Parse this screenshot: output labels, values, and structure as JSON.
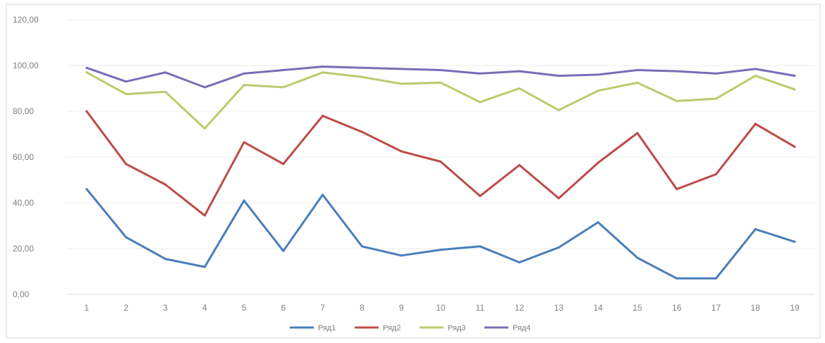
{
  "chart_data": {
    "type": "line",
    "title": "",
    "xlabel": "",
    "ylabel": "",
    "x": [
      "1",
      "2",
      "3",
      "4",
      "5",
      "6",
      "7",
      "8",
      "9",
      "10",
      "11",
      "12",
      "13",
      "14",
      "15",
      "16",
      "17",
      "18",
      "19"
    ],
    "ylim": [
      0,
      120
    ],
    "yticks": [
      "0,00",
      "20,00",
      "40,00",
      "60,00",
      "80,00",
      "100,00",
      "120,00"
    ],
    "ytick_values": [
      0,
      20,
      40,
      60,
      80,
      100,
      120
    ],
    "grid": true,
    "legend_position": "bottom",
    "series": [
      {
        "name": "Ряд1",
        "color": "#4a7ebb",
        "values": [
          46,
          25,
          15.5,
          12,
          41,
          19,
          43.5,
          21,
          17,
          19.5,
          21,
          14,
          20.5,
          31.5,
          16,
          7,
          7,
          28.5,
          23
        ]
      },
      {
        "name": "Ряд2",
        "color": "#be4b48",
        "values": [
          80,
          57,
          48,
          34.5,
          66.5,
          57,
          78,
          71,
          62.5,
          58,
          43,
          56.5,
          42,
          57.5,
          70.5,
          46,
          52.5,
          74.5,
          64.5
        ]
      },
      {
        "name": "Ряд3",
        "color": "#b8cc6c",
        "values": [
          97,
          87.5,
          88.5,
          72.5,
          91.5,
          90.5,
          97,
          95,
          92,
          92.5,
          84,
          90,
          80.5,
          89,
          92.5,
          84.5,
          85.5,
          95.5,
          89.5
        ]
      },
      {
        "name": "Ряд4",
        "color": "#7b6cb5",
        "values": [
          99,
          93,
          97,
          90.5,
          96.5,
          98,
          99.5,
          99,
          98.5,
          98,
          96.5,
          97.5,
          95.5,
          96,
          98,
          97.5,
          96.5,
          98.5,
          95.5
        ]
      }
    ]
  }
}
